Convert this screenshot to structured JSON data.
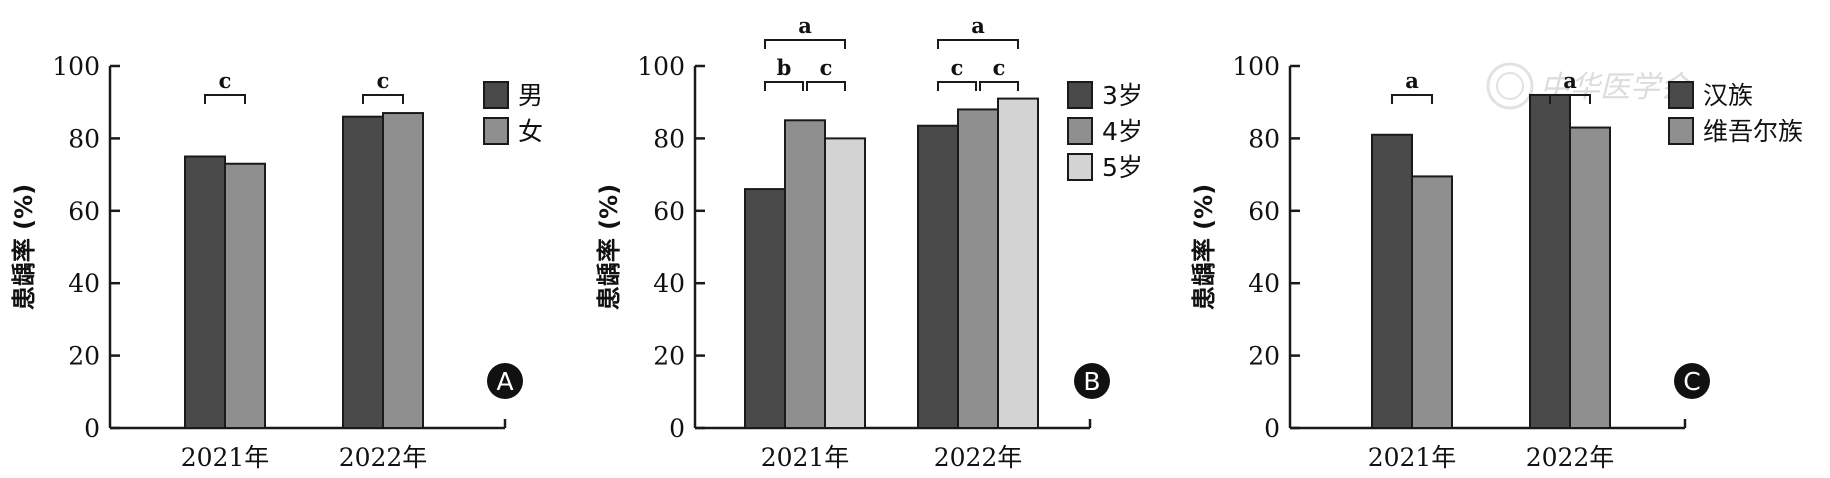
{
  "colors": {
    "dark": "#4a4a4a",
    "medium": "#8f8f8f",
    "light": "#d3d3d3",
    "stroke": "#1a1a1a"
  },
  "watermark": "中华医学会",
  "chart_data": [
    {
      "panel": "A",
      "type": "bar",
      "ylabel": "患龋率 (%)",
      "ylim": [
        0,
        100
      ],
      "yticks": [
        "0",
        "20",
        "40",
        "60",
        "80",
        "100"
      ],
      "categories": [
        "2021年",
        "2022年"
      ],
      "series": [
        {
          "name": "男",
          "color": "#4a4a4a",
          "values": [
            75,
            86
          ]
        },
        {
          "name": "女",
          "color": "#8f8f8f",
          "values": [
            73,
            87
          ]
        }
      ],
      "legend": "top-right",
      "significance": [
        {
          "category": 0,
          "from_series": 0,
          "to_series": 1,
          "level": 0,
          "label": "c"
        },
        {
          "category": 1,
          "from_series": 0,
          "to_series": 1,
          "level": 0,
          "label": "c"
        }
      ]
    },
    {
      "panel": "B",
      "type": "bar",
      "ylabel": "患龋率 (%)",
      "ylim": [
        0,
        100
      ],
      "yticks": [
        "0",
        "20",
        "40",
        "60",
        "80",
        "100"
      ],
      "categories": [
        "2021年",
        "2022年"
      ],
      "series": [
        {
          "name": "3岁",
          "color": "#4a4a4a",
          "values": [
            66,
            83.5
          ]
        },
        {
          "name": "4岁",
          "color": "#8f8f8f",
          "values": [
            85,
            88
          ]
        },
        {
          "name": "5岁",
          "color": "#d3d3d3",
          "values": [
            80,
            91
          ]
        }
      ],
      "legend": "top-right",
      "significance": [
        {
          "category": 0,
          "from_series": 0,
          "to_series": 1,
          "level": 0,
          "label": "b"
        },
        {
          "category": 0,
          "from_series": 1,
          "to_series": 2,
          "level": 0,
          "label": "c"
        },
        {
          "category": 0,
          "from_series": 0,
          "to_series": 2,
          "level": 1,
          "label": "a"
        },
        {
          "category": 1,
          "from_series": 0,
          "to_series": 1,
          "level": 0,
          "label": "c"
        },
        {
          "category": 1,
          "from_series": 1,
          "to_series": 2,
          "level": 0,
          "label": "c"
        },
        {
          "category": 1,
          "from_series": 0,
          "to_series": 2,
          "level": 1,
          "label": "a"
        }
      ]
    },
    {
      "panel": "C",
      "type": "bar",
      "ylabel": "患龋率 (%)",
      "ylim": [
        0,
        100
      ],
      "yticks": [
        "0",
        "20",
        "40",
        "60",
        "80",
        "100"
      ],
      "categories": [
        "2021年",
        "2022年"
      ],
      "series": [
        {
          "name": "汉族",
          "color": "#4a4a4a",
          "values": [
            81,
            92
          ]
        },
        {
          "name": "维吾尔族",
          "color": "#8f8f8f",
          "values": [
            69.5,
            83
          ]
        }
      ],
      "legend": "top-right",
      "significance": [
        {
          "category": 0,
          "from_series": 0,
          "to_series": 1,
          "level": 0,
          "label": "a"
        },
        {
          "category": 1,
          "from_series": 0,
          "to_series": 1,
          "level": 0,
          "label": "a"
        }
      ]
    }
  ]
}
